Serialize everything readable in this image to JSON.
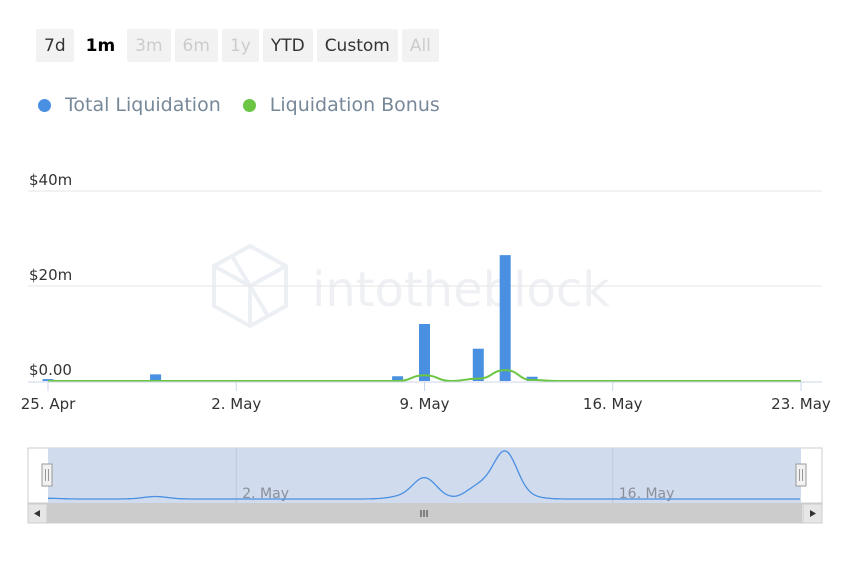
{
  "range_selector": {
    "buttons": [
      {
        "label": "7d",
        "state": "normal"
      },
      {
        "label": "1m",
        "state": "selected"
      },
      {
        "label": "3m",
        "state": "disabled"
      },
      {
        "label": "6m",
        "state": "disabled"
      },
      {
        "label": "1y",
        "state": "disabled"
      },
      {
        "label": "YTD",
        "state": "normal"
      },
      {
        "label": "Custom",
        "state": "normal"
      },
      {
        "label": "All",
        "state": "disabled"
      }
    ]
  },
  "legend": {
    "items": [
      {
        "label": "Total Liquidation",
        "color": "#4a90e2"
      },
      {
        "label": "Liquidation Bonus",
        "color": "#6cc644"
      }
    ]
  },
  "watermark": {
    "text": "intotheblock"
  },
  "colors": {
    "bar": "#4a90e2",
    "bonus_line": "#6cc644",
    "navigator_fill": "#d1dbee",
    "navigator_line": "#4a90e2",
    "grid": "#e6e6e6"
  },
  "chart_data": {
    "type": "bar",
    "x_start": "2021-04-25",
    "x_end": "2021-05-23",
    "ylim": [
      0,
      40000000
    ],
    "y_ticks": [
      {
        "value": 0,
        "label": "$0.00"
      },
      {
        "value": 20000000,
        "label": "$20m"
      },
      {
        "value": 40000000,
        "label": "$40m"
      }
    ],
    "x_ticks": [
      {
        "date": "2021-04-25",
        "label": "25. Apr"
      },
      {
        "date": "2021-05-02",
        "label": "2. May"
      },
      {
        "date": "2021-05-09",
        "label": "9. May"
      },
      {
        "date": "2021-05-16",
        "label": "16. May"
      },
      {
        "date": "2021-05-23",
        "label": "23. May"
      }
    ],
    "navigator_x_ticks": [
      {
        "date": "2021-05-02",
        "label": "2. May"
      },
      {
        "date": "2021-05-16",
        "label": "16. May"
      }
    ],
    "series": [
      {
        "name": "Total Liquidation",
        "type": "bar",
        "points": [
          {
            "date": "2021-04-25",
            "value": 400000
          },
          {
            "date": "2021-04-29",
            "value": 1400000
          },
          {
            "date": "2021-05-08",
            "value": 1000000
          },
          {
            "date": "2021-05-09",
            "value": 12000000
          },
          {
            "date": "2021-05-11",
            "value": 6800000
          },
          {
            "date": "2021-05-12",
            "value": 26500000
          },
          {
            "date": "2021-05-13",
            "value": 900000
          }
        ]
      },
      {
        "name": "Liquidation Bonus",
        "type": "line",
        "points": [
          {
            "date": "2021-04-25",
            "value": 0
          },
          {
            "date": "2021-05-08",
            "value": 0
          },
          {
            "date": "2021-05-09",
            "value": 1200000
          },
          {
            "date": "2021-05-10",
            "value": 0
          },
          {
            "date": "2021-05-11",
            "value": 500000
          },
          {
            "date": "2021-05-12",
            "value": 2300000
          },
          {
            "date": "2021-05-13",
            "value": 200000
          },
          {
            "date": "2021-05-14",
            "value": 0
          },
          {
            "date": "2021-05-23",
            "value": 0
          }
        ]
      }
    ]
  }
}
